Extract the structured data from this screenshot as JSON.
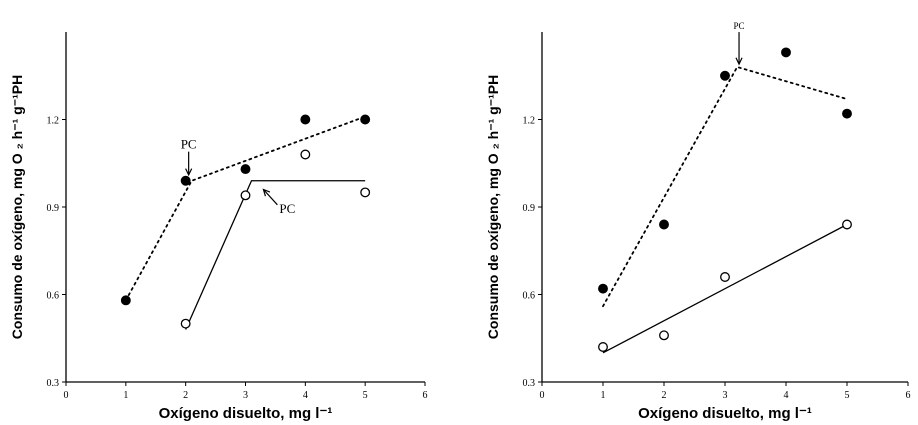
{
  "chart_data": [
    {
      "type": "scatter",
      "xlabel": "Oxígeno disuelto, mg l⁻¹",
      "ylabel": "Consumo de oxígeno, mg O ₂ h⁻¹ g⁻¹PH",
      "xlim": [
        0,
        6
      ],
      "ylim": [
        0.3,
        1.5
      ],
      "xticks": [
        "0",
        "1",
        "2",
        "3",
        "4",
        "5",
        "6"
      ],
      "yticks": [
        "0.3",
        "0.6",
        "0.9",
        "1.2"
      ],
      "grid": false,
      "series": [
        {
          "marker": "filled-circle",
          "points": [
            [
              1,
              0.58
            ],
            [
              2,
              0.99
            ],
            [
              3,
              1.03
            ],
            [
              4,
              1.2
            ],
            [
              5,
              1.2
            ]
          ],
          "fit": {
            "style": "dotted",
            "segments": [
              [
                [
                  1,
                  0.58
                ],
                [
                  2.1,
                  0.99
                ],
                [
                  5,
                  1.21
                ]
              ]
            ]
          }
        },
        {
          "marker": "open-circle",
          "points": [
            [
              2,
              0.5
            ],
            [
              3,
              0.94
            ],
            [
              4,
              1.08
            ],
            [
              5,
              0.95
            ]
          ],
          "fit": {
            "style": "solid",
            "segments": [
              [
                [
                  2,
                  0.48
                ],
                [
                  3.1,
                  0.99
                ],
                [
                  5,
                  0.99
                ]
              ]
            ]
          }
        }
      ],
      "annotations": [
        {
          "text": "PC",
          "x": 2.05,
          "y": 1.1,
          "arrow_to": [
            2.05,
            1.01
          ]
        },
        {
          "text": "PC",
          "x": 3.7,
          "y": 0.88,
          "arrow_to": [
            3.3,
            0.96
          ]
        }
      ]
    },
    {
      "type": "scatter",
      "xlabel": "Oxígeno disuelto, mg l⁻¹",
      "ylabel": "Consumo de oxígeno, mg O ₂ h⁻¹ g⁻¹PH",
      "xlim": [
        0,
        6
      ],
      "ylim": [
        0.3,
        1.5
      ],
      "xticks": [
        "0",
        "1",
        "2",
        "3",
        "4",
        "5",
        "6"
      ],
      "yticks": [
        "0.3",
        "0.6",
        "0.9",
        "1.2"
      ],
      "grid": false,
      "series": [
        {
          "marker": "filled-circle",
          "points": [
            [
              1,
              0.62
            ],
            [
              2,
              0.84
            ],
            [
              3,
              1.35
            ],
            [
              4,
              1.43
            ],
            [
              5,
              1.22
            ]
          ],
          "fit": {
            "style": "dotted",
            "segments": [
              [
                [
                  1,
                  0.56
                ],
                [
                  3.2,
                  1.38
                ],
                [
                  5,
                  1.27
                ]
              ]
            ]
          }
        },
        {
          "marker": "open-circle",
          "points": [
            [
              1,
              0.42
            ],
            [
              2,
              0.46
            ],
            [
              3,
              0.66
            ],
            [
              5,
              0.84
            ]
          ],
          "fit": {
            "style": "solid",
            "segments": [
              [
                [
                  1,
                  0.4
                ],
                [
                  5,
                  0.84
                ]
              ]
            ]
          }
        }
      ],
      "annotations": [
        {
          "text": "PC",
          "x": 3.23,
          "y": 1.51,
          "arrow_to": [
            3.23,
            1.39
          ]
        }
      ]
    }
  ]
}
